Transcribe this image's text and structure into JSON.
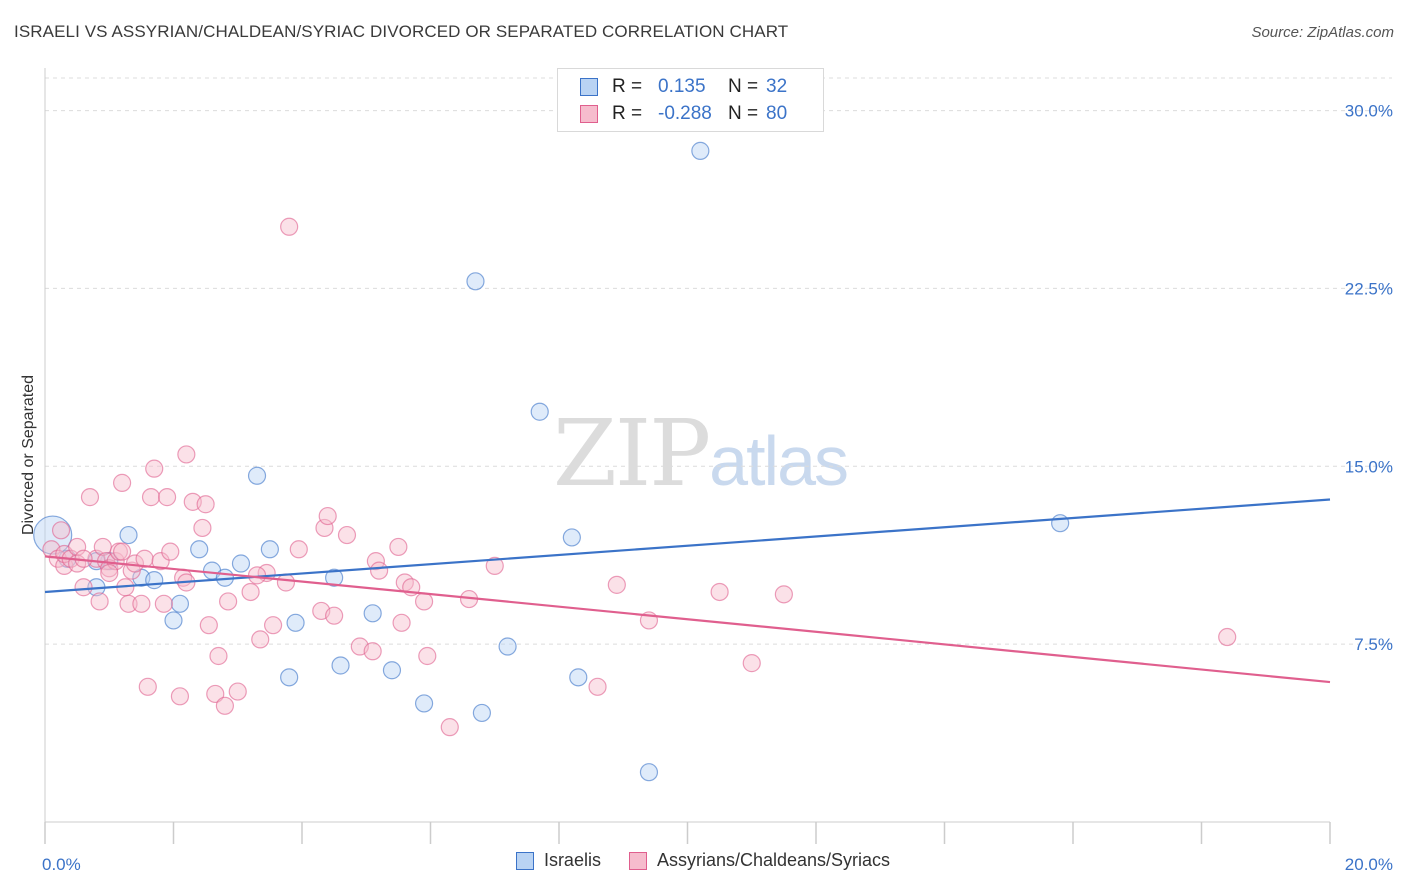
{
  "title": "ISRAELI VS ASSYRIAN/CHALDEAN/SYRIAC DIVORCED OR SEPARATED CORRELATION CHART",
  "source": "Source: ZipAtlas.com",
  "watermark": {
    "zip": "ZIP",
    "atlas": "atlas"
  },
  "colors": {
    "blue": "#3b73c8",
    "blue_fill": "#b9d3f3",
    "pink": "#e05f8e",
    "pink_fill": "#f6bccd",
    "tick_text": "#3b73c8",
    "grid": "#dcdcdc"
  },
  "legend": {
    "rows": [
      {
        "r_label": "R =",
        "r_value": "0.135",
        "n_label": "N =",
        "n_value": "32"
      },
      {
        "r_label": "R =",
        "r_value": "-0.288",
        "n_label": "N =",
        "n_value": "80"
      }
    ]
  },
  "chart_data": {
    "type": "scatter",
    "title": "ISRAELI VS ASSYRIAN/CHALDEAN/SYRIAC DIVORCED OR SEPARATED CORRELATION CHART",
    "xlabel": "",
    "ylabel": "Divorced or Separated",
    "xlim": [
      0,
      20
    ],
    "ylim": [
      0,
      31.5
    ],
    "x_tick_labels": [
      "0.0%",
      "20.0%"
    ],
    "y_ticks": [
      7.5,
      15.0,
      22.5,
      30.0
    ],
    "y_tick_labels": [
      "7.5%",
      "15.0%",
      "22.5%",
      "30.0%"
    ],
    "grid": true,
    "legend_position": "top-center",
    "series": [
      {
        "name": "Israelis",
        "color": "#3b73c8",
        "r": 0.135,
        "n": 32,
        "trend": {
          "x": [
            0,
            20
          ],
          "y": [
            9.7,
            13.6
          ]
        },
        "points": [
          [
            0.12,
            12.1
          ],
          [
            0.35,
            11.1
          ],
          [
            1.0,
            11.0
          ],
          [
            0.8,
            11.0
          ],
          [
            0.8,
            9.9
          ],
          [
            1.3,
            12.1
          ],
          [
            1.5,
            10.3
          ],
          [
            1.7,
            10.2
          ],
          [
            2.0,
            8.5
          ],
          [
            2.1,
            9.2
          ],
          [
            2.4,
            11.5
          ],
          [
            2.6,
            10.6
          ],
          [
            2.8,
            10.3
          ],
          [
            3.05,
            10.9
          ],
          [
            3.3,
            14.6
          ],
          [
            3.5,
            11.5
          ],
          [
            3.8,
            6.1
          ],
          [
            3.9,
            8.4
          ],
          [
            4.5,
            10.3
          ],
          [
            4.6,
            6.6
          ],
          [
            5.1,
            8.8
          ],
          [
            5.4,
            6.4
          ],
          [
            5.9,
            5.0
          ],
          [
            6.7,
            22.8
          ],
          [
            6.8,
            4.6
          ],
          [
            7.2,
            7.4
          ],
          [
            7.7,
            17.3
          ],
          [
            8.2,
            12.0
          ],
          [
            8.3,
            6.1
          ],
          [
            9.4,
            2.1
          ],
          [
            10.2,
            28.3
          ],
          [
            15.8,
            12.6
          ]
        ]
      },
      {
        "name": "Assyrians/Chaldeans/Syriacs",
        "color": "#e05f8e",
        "r": -0.288,
        "n": 80,
        "trend": {
          "x": [
            0,
            20
          ],
          "y": [
            11.2,
            5.9
          ]
        },
        "points": [
          [
            0.1,
            11.5
          ],
          [
            0.2,
            11.1
          ],
          [
            0.25,
            12.3
          ],
          [
            0.3,
            10.8
          ],
          [
            0.3,
            11.3
          ],
          [
            0.4,
            11.1
          ],
          [
            0.5,
            11.6
          ],
          [
            0.5,
            10.9
          ],
          [
            0.6,
            9.9
          ],
          [
            0.7,
            13.7
          ],
          [
            0.8,
            11.1
          ],
          [
            0.85,
            9.3
          ],
          [
            0.9,
            11.6
          ],
          [
            0.95,
            11.0
          ],
          [
            1.0,
            10.7
          ],
          [
            1.1,
            11.0
          ],
          [
            1.15,
            11.4
          ],
          [
            1.2,
            14.3
          ],
          [
            1.2,
            11.4
          ],
          [
            1.3,
            9.2
          ],
          [
            1.35,
            10.6
          ],
          [
            1.4,
            10.9
          ],
          [
            1.5,
            9.2
          ],
          [
            1.55,
            11.1
          ],
          [
            1.6,
            5.7
          ],
          [
            1.65,
            13.7
          ],
          [
            1.7,
            14.9
          ],
          [
            1.8,
            11.0
          ],
          [
            1.85,
            9.2
          ],
          [
            1.9,
            13.7
          ],
          [
            1.95,
            11.4
          ],
          [
            2.1,
            5.3
          ],
          [
            2.15,
            10.3
          ],
          [
            2.2,
            10.1
          ],
          [
            2.2,
            15.5
          ],
          [
            2.3,
            13.5
          ],
          [
            2.45,
            12.4
          ],
          [
            2.5,
            13.4
          ],
          [
            2.55,
            8.3
          ],
          [
            2.65,
            5.4
          ],
          [
            2.7,
            7.0
          ],
          [
            2.8,
            4.9
          ],
          [
            2.85,
            9.3
          ],
          [
            3.0,
            5.5
          ],
          [
            3.2,
            9.7
          ],
          [
            3.35,
            7.7
          ],
          [
            3.45,
            10.5
          ],
          [
            3.55,
            8.3
          ],
          [
            3.75,
            10.1
          ],
          [
            3.8,
            25.1
          ],
          [
            3.95,
            11.5
          ],
          [
            4.3,
            8.9
          ],
          [
            4.35,
            12.4
          ],
          [
            4.4,
            12.9
          ],
          [
            4.5,
            8.7
          ],
          [
            4.7,
            12.1
          ],
          [
            4.9,
            7.4
          ],
          [
            5.1,
            7.2
          ],
          [
            5.15,
            11.0
          ],
          [
            5.2,
            10.6
          ],
          [
            5.5,
            11.6
          ],
          [
            5.55,
            8.4
          ],
          [
            5.6,
            10.1
          ],
          [
            5.7,
            9.9
          ],
          [
            5.9,
            9.3
          ],
          [
            5.95,
            7.0
          ],
          [
            6.3,
            4.0
          ],
          [
            6.6,
            9.4
          ],
          [
            7.0,
            10.8
          ],
          [
            8.6,
            5.7
          ],
          [
            8.9,
            10.0
          ],
          [
            9.4,
            8.5
          ],
          [
            10.5,
            9.7
          ],
          [
            11.0,
            6.7
          ],
          [
            11.5,
            9.6
          ],
          [
            18.4,
            7.8
          ],
          [
            1.0,
            10.5
          ],
          [
            0.6,
            11.1
          ],
          [
            1.25,
            9.9
          ],
          [
            3.3,
            10.4
          ]
        ]
      }
    ]
  }
}
